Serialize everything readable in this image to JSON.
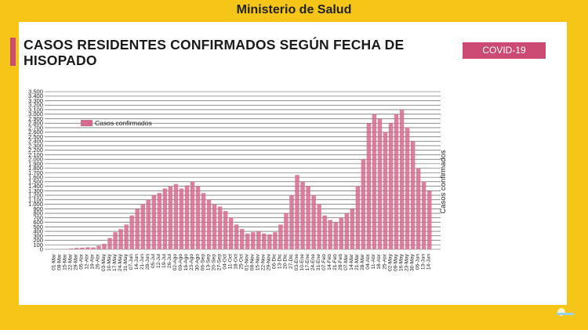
{
  "header": {
    "title": "Ministerio de Salud"
  },
  "chart_data": {
    "type": "bar",
    "title": "CASOS RESIDENTES CONFIRMADOS SEGÚN FECHA DE HISOPADO",
    "badge": "COVID-19",
    "xlabel": "",
    "ylabel": "Casos confirmados",
    "ylim": [
      0,
      3500
    ],
    "yticks": [
      0,
      100,
      200,
      300,
      400,
      500,
      600,
      700,
      800,
      900,
      1000,
      1100,
      1200,
      1300,
      1400,
      1500,
      1600,
      1700,
      1800,
      1900,
      2000,
      2100,
      2200,
      2300,
      2400,
      2500,
      2600,
      2700,
      2800,
      2900,
      3000,
      3100,
      3200,
      3300,
      3400,
      3500
    ],
    "ytick_labels": [
      "0",
      "100",
      "200",
      "300",
      "400",
      "500",
      "600",
      "700",
      "800",
      "900",
      "1.000",
      "1.100",
      "1.200",
      "1.300",
      "1.400",
      "1.500",
      "1.600",
      "1.700",
      "1.800",
      "1.900",
      "2.000",
      "2.100",
      "2.200",
      "2.300",
      "2.400",
      "2.500",
      "2.600",
      "2.700",
      "2.800",
      "2.900",
      "3.000",
      "3.100",
      "3.200",
      "3.300",
      "3.400",
      "3.500"
    ],
    "grid": true,
    "legend": {
      "position": "top-left",
      "entries": [
        "Casos confirmados"
      ]
    },
    "color": "#d66a8e",
    "categories": [
      "01-Mar",
      "08-Mar",
      "15-Mar",
      "22-Mar",
      "29-Mar",
      "05-Abr",
      "12-Abr",
      "19-Abr",
      "26-Abr",
      "03-May",
      "10-May",
      "17-May",
      "24-May",
      "31-May",
      "07-Jun",
      "14-Jun",
      "21-Jun",
      "28-Jun",
      "05-Jul",
      "12-Jul",
      "19-Jul",
      "26-Jul",
      "02-Ago",
      "09-Ago",
      "16-Ago",
      "23-Ago",
      "30-Ago",
      "06-Sep",
      "13-Sep",
      "20-Sep",
      "27-Sep",
      "04-Oct",
      "11-Oct",
      "18-Oct",
      "25-Oct",
      "01-Nov",
      "08-Nov",
      "15-Nov",
      "22-Nov",
      "29-Nov",
      "06-Dic",
      "13-Dic",
      "20-Dic",
      "27-Dic",
      "03-Ene",
      "10-Ene",
      "17-Ene",
      "24-Ene",
      "31-Ene",
      "07-Feb",
      "14-Feb",
      "21-Feb",
      "28-Feb",
      "07-Mar",
      "14-Mar",
      "21-Mar",
      "28-Mar",
      "04-Abr",
      "11-Abr",
      "18-Abr",
      "25-Abr",
      "02-May",
      "09-May",
      "16-May",
      "23-May",
      "30-May",
      "06-Jun",
      "13-Jun",
      "14-Jun"
    ],
    "values": [
      0,
      2,
      3,
      15,
      30,
      35,
      45,
      40,
      80,
      120,
      250,
      380,
      450,
      550,
      750,
      900,
      1000,
      1100,
      1200,
      1250,
      1350,
      1400,
      1450,
      1350,
      1420,
      1500,
      1400,
      1250,
      1100,
      1000,
      950,
      850,
      700,
      550,
      450,
      350,
      380,
      400,
      350,
      330,
      380,
      550,
      800,
      1200,
      1650,
      1500,
      1400,
      1200,
      1000,
      750,
      650,
      600,
      700,
      800,
      900,
      1400,
      2000,
      2800,
      3000,
      2900,
      2600,
      2800,
      3000,
      3100,
      2700,
      2400,
      1800,
      1500,
      1300
    ]
  }
}
